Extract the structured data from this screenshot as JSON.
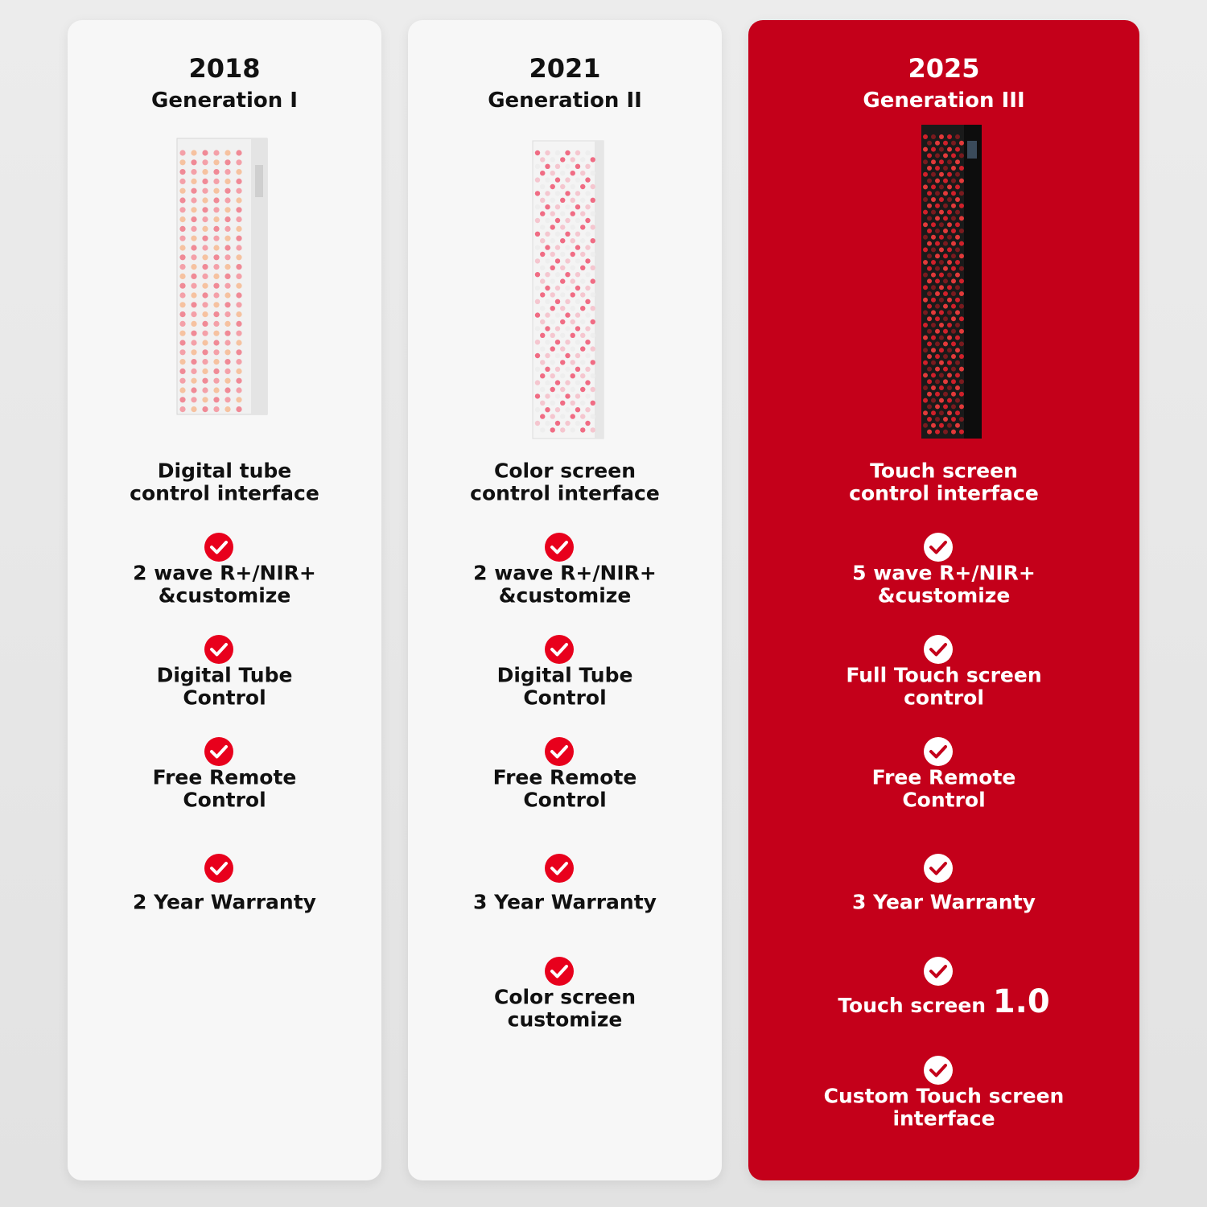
{
  "columns": [
    {
      "year": "2018",
      "generation": "Generation I",
      "interface": [
        "Digital tube",
        "control interface"
      ],
      "features": [
        {
          "lines": [
            "2 wave R+/NIR+",
            "&customize"
          ]
        },
        {
          "lines": [
            "Digital Tube",
            "Control"
          ]
        },
        {
          "lines": [
            "Free Remote",
            "Control"
          ]
        },
        {
          "lines": [
            "2 Year Warranty"
          ]
        }
      ]
    },
    {
      "year": "2021",
      "generation": "Generation II",
      "interface": [
        "Color screen",
        "control interface"
      ],
      "features": [
        {
          "lines": [
            "2 wave R+/NIR+",
            "&customize"
          ]
        },
        {
          "lines": [
            "Digital Tube",
            "Control"
          ]
        },
        {
          "lines": [
            "Free Remote",
            "Control"
          ]
        },
        {
          "lines": [
            "3 Year Warranty"
          ]
        },
        {
          "lines": [
            "Color screen",
            "customize"
          ]
        }
      ]
    },
    {
      "year": "2025",
      "generation": "Generation III",
      "interface": [
        "Touch screen",
        "control interface"
      ],
      "features": [
        {
          "lines": [
            "5 wave R+/NIR+",
            "&customize"
          ]
        },
        {
          "lines": [
            "Full Touch screen",
            "control"
          ]
        },
        {
          "lines": [
            "Free Remote",
            "Control"
          ]
        },
        {
          "lines": [
            "3 Year Warranty"
          ]
        },
        {
          "lines": [
            "Touch screen"
          ],
          "emphasis": "1.0"
        },
        {
          "lines": [
            "Custom Touch screen",
            "interface"
          ]
        }
      ]
    }
  ]
}
